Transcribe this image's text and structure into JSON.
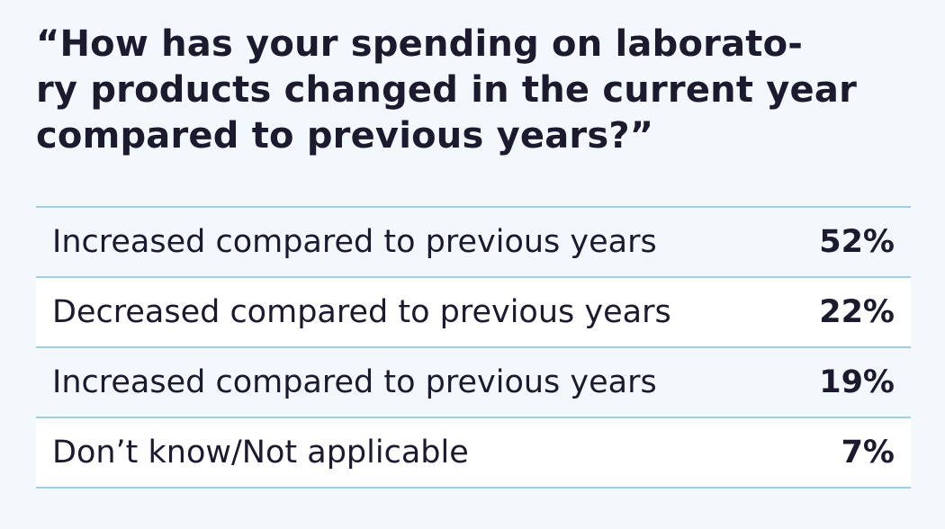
{
  "title_lines": [
    "“How has your spending on laborato-",
    "ry products changed in the current year",
    "compared to previous years?”"
  ],
  "chart_data": {
    "type": "table",
    "title": "“How has your spending on laboratory products changed in the current year compared to previous years?”",
    "rows": [
      {
        "label": "Increased compared to previous years",
        "value": "52%"
      },
      {
        "label": "Decreased compared to previous years",
        "value": "22%"
      },
      {
        "label": "Increased compared to previous years",
        "value": "19%"
      },
      {
        "label": "Don’t know/Not applicable",
        "value": "7%"
      }
    ],
    "colors": {
      "background": "#f2f8fc",
      "row_alt": "#ffffff",
      "divider": "#9fd0e2",
      "text": "#1b1a2e"
    }
  }
}
